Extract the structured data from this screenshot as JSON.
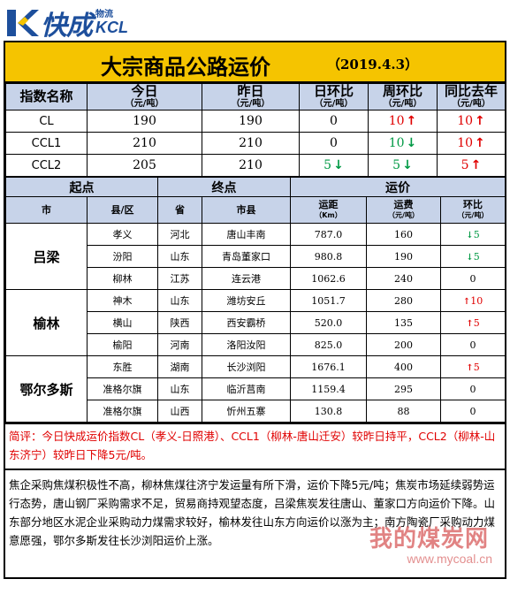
{
  "brand": {
    "name_cn": "快成",
    "sub": "物流",
    "name_en": "KCL"
  },
  "title": "大宗商品公路运价",
  "date": "（2019.4.3）",
  "index_table": {
    "headers": [
      {
        "label": "指数名称",
        "unit": ""
      },
      {
        "label": "今日",
        "unit": "（元/吨）"
      },
      {
        "label": "昨日",
        "unit": "（元/吨）"
      },
      {
        "label": "日环比",
        "unit": "（元/吨）"
      },
      {
        "label": "周环比",
        "unit": "（元/吨）"
      },
      {
        "label": "同比去年",
        "unit": "（元/吨）"
      }
    ],
    "rows": [
      {
        "name": "CL",
        "today": "190",
        "yesterday": "190",
        "dod": "0",
        "dod_dir": "",
        "wow": "10",
        "wow_dir": "up",
        "yoy": "10",
        "yoy_dir": "up"
      },
      {
        "name": "CCL1",
        "today": "210",
        "yesterday": "210",
        "dod": "0",
        "dod_dir": "",
        "wow": "10",
        "wow_dir": "down",
        "yoy": "10",
        "yoy_dir": "up"
      },
      {
        "name": "CCL2",
        "today": "205",
        "yesterday": "210",
        "dod": "5",
        "dod_dir": "down",
        "wow": "5",
        "wow_dir": "down",
        "yoy": "5",
        "yoy_dir": "up"
      }
    ]
  },
  "route_table": {
    "group_headers": {
      "origin": "起点",
      "destination": "终点",
      "freight": "运价"
    },
    "headers": {
      "city": "市",
      "county": "县/区",
      "province": "省",
      "city_county": "市县",
      "distance": "运距",
      "distance_unit": "（Km）",
      "fee": "运费",
      "fee_unit": "（元/吨）",
      "change": "环比",
      "change_unit": "（元/吨）"
    },
    "groups": [
      {
        "origin": "吕梁",
        "rows": [
          {
            "county": "孝义",
            "province": "河北",
            "dest": "唐山丰南",
            "distance": "787.0",
            "fee": "160",
            "change": "5",
            "dir": "down"
          },
          {
            "county": "汾阳",
            "province": "山东",
            "dest": "青岛董家口",
            "distance": "980.8",
            "fee": "190",
            "change": "5",
            "dir": "down"
          },
          {
            "county": "柳林",
            "province": "江苏",
            "dest": "连云港",
            "distance": "1062.6",
            "fee": "240",
            "change": "0",
            "dir": ""
          }
        ]
      },
      {
        "origin": "榆林",
        "rows": [
          {
            "county": "神木",
            "province": "山东",
            "dest": "潍坊安丘",
            "distance": "1051.7",
            "fee": "280",
            "change": "10",
            "dir": "up"
          },
          {
            "county": "横山",
            "province": "陕西",
            "dest": "西安霸桥",
            "distance": "520.0",
            "fee": "135",
            "change": "5",
            "dir": "up"
          },
          {
            "county": "榆阳",
            "province": "河南",
            "dest": "洛阳汝阳",
            "distance": "825.0",
            "fee": "200",
            "change": "0",
            "dir": ""
          }
        ]
      },
      {
        "origin": "鄂尔多斯",
        "rows": [
          {
            "county": "东胜",
            "province": "湖南",
            "dest": "长沙浏阳",
            "distance": "1676.1",
            "fee": "400",
            "change": "5",
            "dir": "up"
          },
          {
            "county": "准格尔旗",
            "province": "山东",
            "dest": "临沂莒南",
            "distance": "1159.4",
            "fee": "295",
            "change": "0",
            "dir": ""
          },
          {
            "county": "准格尔旗",
            "province": "山西",
            "dest": "忻州五寨",
            "distance": "130.8",
            "fee": "88",
            "change": "0",
            "dir": ""
          }
        ]
      }
    ]
  },
  "comment": "简评：今日快成运价指数CL（孝义-日照港）、CCL1（柳林-唐山迁安）较昨日持平，CCL2（柳林-山东济宁）较昨日下降5元/吨。",
  "analysis": "焦企采购焦煤积极性不高，柳林焦煤往济宁发运量有所下滑，运价下降5元/吨；焦炭市场延续弱势运行态势，唐山钢厂采购需求不足，贸易商持观望态度，吕梁焦炭发往唐山、董家口方向运价下降。山东部分地区水泥企业采购动力煤需求较好，榆林发往山东方向运价以涨为主；南方陶瓷厂采购动力煤意愿强，鄂尔多斯发往长沙浏阳运价上涨。",
  "watermark": {
    "text": "我的煤炭网",
    "url": "www.mycoal.cn"
  },
  "colors": {
    "title_bg": "#f5c400",
    "header_bg": "#c7d3e9",
    "up": "#e00000",
    "down": "#009944",
    "brand": "#1d4f9c"
  }
}
